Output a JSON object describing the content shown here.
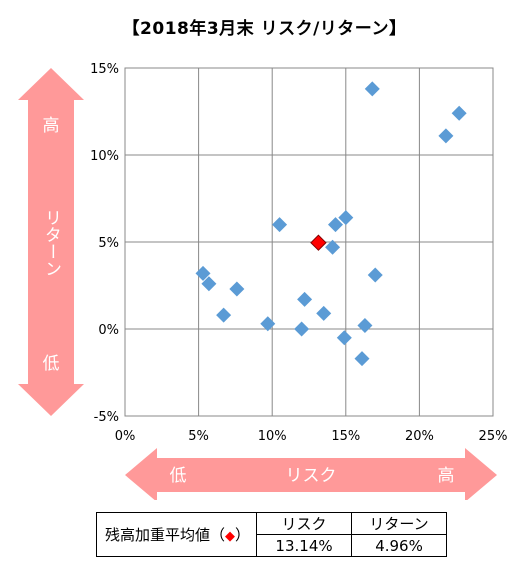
{
  "chart_data": {
    "type": "scatter",
    "title": "【2018年3月末 リスク/リターン】",
    "xlim": [
      0,
      25
    ],
    "ylim": [
      -5,
      15
    ],
    "x_ticks": [
      "0%",
      "5%",
      "10%",
      "15%",
      "20%",
      "25%"
    ],
    "y_ticks": [
      "-5%",
      "0%",
      "5%",
      "10%",
      "15%"
    ],
    "grid": true,
    "x_axis_arrow": {
      "label": "リスク",
      "low": "低",
      "high": "高"
    },
    "y_axis_arrow": {
      "label": "リターン",
      "low": "低",
      "high": "高"
    },
    "series": [
      {
        "color": "#5b9bd5",
        "marker": "diamond",
        "points": [
          [
            5.3,
            3.2
          ],
          [
            5.7,
            2.6
          ],
          [
            6.7,
            0.8
          ],
          [
            7.6,
            2.3
          ],
          [
            9.7,
            0.3
          ],
          [
            10.5,
            6.0
          ],
          [
            12.0,
            0.0
          ],
          [
            12.2,
            1.7
          ],
          [
            13.5,
            0.9
          ],
          [
            14.1,
            4.7
          ],
          [
            14.3,
            6.0
          ],
          [
            14.9,
            -0.5
          ],
          [
            15.0,
            6.4
          ],
          [
            16.1,
            -1.7
          ],
          [
            16.3,
            0.2
          ],
          [
            16.8,
            13.8
          ],
          [
            17.0,
            3.1
          ],
          [
            21.8,
            11.1
          ],
          [
            22.7,
            12.4
          ]
        ]
      },
      {
        "name": "残高加重平均値",
        "color": "#ff0000",
        "marker": "diamond",
        "points": [
          [
            13.14,
            4.96
          ]
        ]
      }
    ]
  },
  "summary_table": {
    "row_label": "残高加重平均値（",
    "row_label_end": "）",
    "marker_glyph": "◆",
    "risk_header": "リスク",
    "return_header": "リターン",
    "risk_value": "13.14%",
    "return_value": "4.96%"
  }
}
